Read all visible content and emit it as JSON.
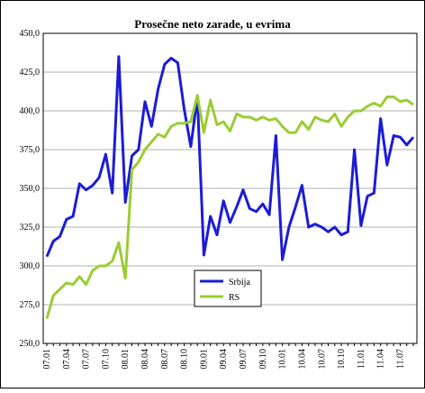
{
  "chart_data": {
    "type": "line",
    "title": "Prosečne neto zarade, u evrima",
    "categories": [
      "07.01",
      null,
      null,
      "07.04",
      null,
      null,
      "07.07",
      null,
      null,
      "07.10",
      null,
      null,
      "08.01",
      null,
      null,
      "08.04",
      null,
      null,
      "08.07",
      null,
      null,
      "08.10",
      null,
      null,
      "09.01",
      null,
      null,
      "09.04",
      null,
      null,
      "09.07",
      null,
      null,
      "09.10",
      null,
      null,
      "10.01",
      null,
      null,
      "10.04",
      null,
      null,
      "10.07",
      null,
      null,
      "10.10",
      null,
      null,
      "11.01",
      null,
      null,
      "11.04",
      null,
      null,
      "11.07",
      null,
      null
    ],
    "series": [
      {
        "name": "Srbija",
        "color": "#1c1cd6",
        "values": [
          306,
          316,
          319,
          330,
          332,
          353,
          349,
          352,
          357,
          372,
          347,
          435,
          341,
          371,
          375,
          406,
          390,
          414,
          430,
          434,
          431,
          401,
          377,
          409,
          307,
          332,
          320,
          342,
          328,
          338,
          349,
          337,
          335,
          340,
          333,
          384,
          304,
          325,
          338,
          352,
          325,
          327,
          325,
          322,
          325,
          320,
          322,
          375,
          326,
          345,
          347,
          395,
          365,
          384,
          383,
          378,
          383
        ]
      },
      {
        "name": "RS",
        "color": "#9acd32",
        "values": [
          266,
          281,
          285,
          289,
          288,
          293,
          288,
          297,
          300,
          300,
          303,
          315,
          292,
          362,
          367,
          375,
          380,
          385,
          383,
          390,
          392,
          392,
          393,
          410,
          386,
          407,
          391,
          393,
          387,
          398,
          396,
          396,
          394,
          396,
          394,
          395,
          390,
          386,
          386,
          393,
          388,
          396,
          394,
          393,
          398,
          390,
          396,
          400,
          400,
          403,
          405,
          403,
          409,
          409,
          406,
          407,
          404
        ]
      }
    ],
    "ylim": [
      250,
      450
    ],
    "yticks": [
      {
        "value": 250,
        "label": "250,0"
      },
      {
        "value": 275,
        "label": "275,0"
      },
      {
        "value": 300,
        "label": "300,0"
      },
      {
        "value": 325,
        "label": "325,0"
      },
      {
        "value": 350,
        "label": "350,0"
      },
      {
        "value": 375,
        "label": "375,0"
      },
      {
        "value": 400,
        "label": "400,0"
      },
      {
        "value": 425,
        "label": "425,0"
      },
      {
        "value": 450,
        "label": "450,0"
      }
    ],
    "grid": true,
    "legend": "center"
  }
}
